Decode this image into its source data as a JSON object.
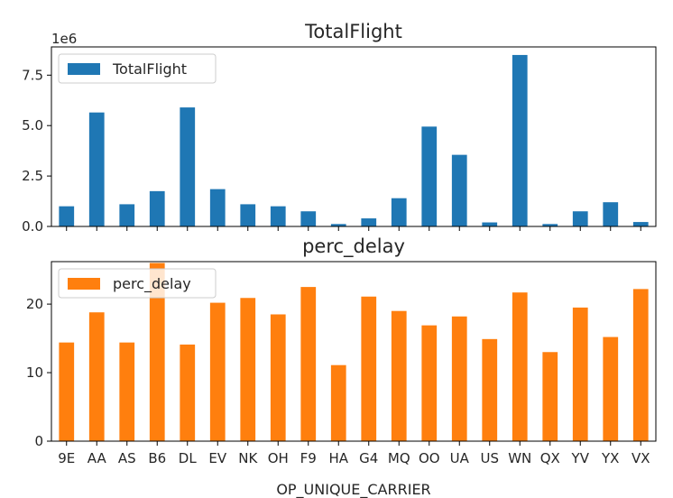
{
  "chart_data": [
    {
      "type": "bar",
      "title": "TotalFlight",
      "ylim": [
        0,
        8.9
      ],
      "y_ticks": [
        "0.0",
        "2.5",
        "5.0",
        "7.5"
      ],
      "y_tick_values": [
        0,
        2.5,
        5.0,
        7.5
      ],
      "scale_label": "1e6",
      "legend_placement": "upper-left",
      "show_x_tick_labels": false,
      "categories": [
        "9E",
        "AA",
        "AS",
        "B6",
        "DL",
        "EV",
        "NK",
        "OH",
        "F9",
        "HA",
        "G4",
        "MQ",
        "OO",
        "UA",
        "US",
        "WN",
        "QX",
        "YV",
        "YX",
        "VX"
      ],
      "series": [
        {
          "name": "TotalFlight",
          "color": "#1f77b4",
          "values": [
            1.0,
            5.65,
            1.1,
            1.75,
            5.9,
            1.85,
            1.1,
            1.0,
            0.75,
            0.12,
            0.4,
            1.4,
            4.95,
            3.55,
            0.2,
            8.5,
            0.12,
            0.75,
            1.2,
            0.22
          ]
        }
      ]
    },
    {
      "type": "bar",
      "title": "perc_delay",
      "ylim": [
        0,
        26.2
      ],
      "y_ticks": [
        "0",
        "10",
        "20"
      ],
      "y_tick_values": [
        0,
        10,
        20
      ],
      "legend_placement": "upper-left",
      "show_x_tick_labels": true,
      "xlabel": "OP_UNIQUE_CARRIER",
      "categories": [
        "9E",
        "AA",
        "AS",
        "B6",
        "DL",
        "EV",
        "NK",
        "OH",
        "F9",
        "HA",
        "G4",
        "MQ",
        "OO",
        "UA",
        "US",
        "WN",
        "QX",
        "YV",
        "YX",
        "VX"
      ],
      "series": [
        {
          "name": "perc_delay",
          "color": "#ff7f0e",
          "values": [
            14.4,
            18.8,
            14.4,
            26.0,
            14.1,
            20.2,
            20.9,
            18.5,
            22.5,
            11.1,
            21.1,
            19.0,
            16.9,
            18.2,
            14.9,
            21.7,
            13.0,
            19.5,
            15.2,
            22.2
          ]
        }
      ]
    }
  ]
}
